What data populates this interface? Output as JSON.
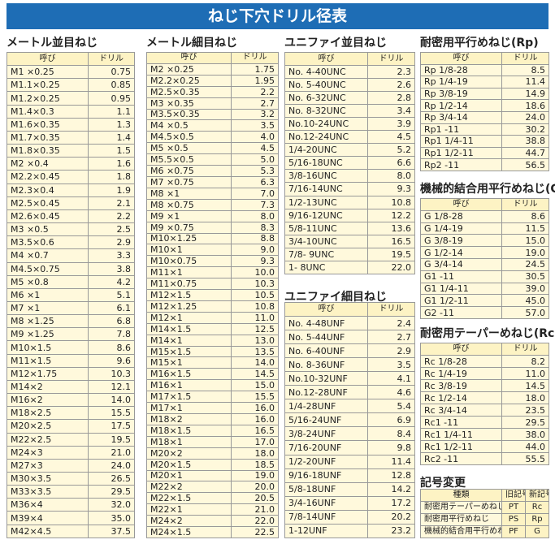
{
  "header": {
    "title": "ねじ下穴ドリル径表"
  },
  "sections": [
    {
      "title": "メートル並目ねじ",
      "header": [
        "呼び",
        "ドリル"
      ],
      "rows": [
        [
          "M1 ×0.25",
          "0.75"
        ],
        [
          "M1.1×0.25",
          "0.85"
        ],
        [
          "M1.2×0.25",
          "0.95"
        ],
        [
          "M1.4×0.3",
          "1.1"
        ],
        [
          "M1.6×0.35",
          "1.3"
        ],
        [
          "M1.7×0.35",
          "1.4"
        ],
        [
          "M1.8×0.35",
          "1.5"
        ],
        [
          "M2 ×0.4",
          "1.6"
        ],
        [
          "M2.2×0.45",
          "1.8"
        ],
        [
          "M2.3×0.4",
          "1.9"
        ],
        [
          "M2.5×0.45",
          "2.1"
        ],
        [
          "M2.6×0.45",
          "2.2"
        ],
        [
          "M3 ×0.5",
          "2.5"
        ],
        [
          "M3.5×0.6",
          "2.9"
        ],
        [
          "M4 ×0.7",
          "3.3"
        ],
        [
          "M4.5×0.75",
          "3.8"
        ],
        [
          "M5 ×0.8",
          "4.2"
        ],
        [
          "M6 ×1",
          "5.1"
        ],
        [
          "M7 ×1",
          "6.1"
        ],
        [
          "M8 ×1.25",
          "6.8"
        ],
        [
          "M9 ×1.25",
          "7.8"
        ],
        [
          "M10×1.5",
          "8.6"
        ],
        [
          "M11×1.5",
          "9.6"
        ],
        [
          "M12×1.75",
          "10.3"
        ],
        [
          "M14×2",
          "12.1"
        ],
        [
          "M16×2",
          "14.0"
        ],
        [
          "M18×2.5",
          "15.5"
        ],
        [
          "M20×2.5",
          "17.5"
        ],
        [
          "M22×2.5",
          "19.5"
        ],
        [
          "M24×3",
          "21.0"
        ],
        [
          "M27×3",
          "24.0"
        ],
        [
          "M30×3.5",
          "26.5"
        ],
        [
          "M33×3.5",
          "29.5"
        ],
        [
          "M36×4",
          "32.0"
        ],
        [
          "M39×4",
          "35.0"
        ],
        [
          "M42×4.5",
          "37.5"
        ]
      ]
    },
    {
      "title": "メートル細目ねじ",
      "header": [
        "呼び",
        "ドリル"
      ],
      "rows": [
        [
          "M2 ×0.25",
          "1.75"
        ],
        [
          "M2.2×0.25",
          "1.95"
        ],
        [
          "M2.5×0.35",
          "2.2"
        ],
        [
          "M3 ×0.35",
          "2.7"
        ],
        [
          "M3.5×0.35",
          "3.2"
        ],
        [
          "M4 ×0.5",
          "3.5"
        ],
        [
          "M4.5×0.5",
          "4.0"
        ],
        [
          "M5 ×0.5",
          "4.5"
        ],
        [
          "M5.5×0.5",
          "5.0"
        ],
        [
          "M6 ×0.75",
          "5.3"
        ],
        [
          "M7 ×0.75",
          "6.3"
        ],
        [
          "M8 ×1",
          "7.0"
        ],
        [
          "M8 ×0.75",
          "7.3"
        ],
        [
          "M9 ×1",
          "8.0"
        ],
        [
          "M9 ×0.75",
          "8.3"
        ],
        [
          "M10×1.25",
          "8.8"
        ],
        [
          "M10×1",
          "9.0"
        ],
        [
          "M10×0.75",
          "9.3"
        ],
        [
          "M11×1",
          "10.0"
        ],
        [
          "M11×0.75",
          "10.3"
        ],
        [
          "M12×1.5",
          "10.5"
        ],
        [
          "M12×1.25",
          "10.8"
        ],
        [
          "M12×1",
          "11.0"
        ],
        [
          "M14×1.5",
          "12.5"
        ],
        [
          "M14×1",
          "13.0"
        ],
        [
          "M15×1.5",
          "13.5"
        ],
        [
          "M15×1",
          "14.0"
        ],
        [
          "M16×1.5",
          "14.5"
        ],
        [
          "M16×1",
          "15.0"
        ],
        [
          "M17×1.5",
          "15.5"
        ],
        [
          "M17×1",
          "16.0"
        ],
        [
          "M18×2",
          "16.0"
        ],
        [
          "M18×1.5",
          "16.5"
        ],
        [
          "M18×1",
          "17.0"
        ],
        [
          "M20×2",
          "18.0"
        ],
        [
          "M20×1.5",
          "18.5"
        ],
        [
          "M20×1",
          "19.0"
        ],
        [
          "M22×2",
          "20.0"
        ],
        [
          "M22×1.5",
          "20.5"
        ],
        [
          "M22×1",
          "21.0"
        ],
        [
          "M24×2",
          "22.0"
        ],
        [
          "M24×1.5",
          "22.5"
        ]
      ]
    },
    {
      "title": "ユニファイ並目ねじ",
      "header": [
        "呼び",
        "ドリル"
      ],
      "rows": [
        [
          "No. 4-40UNC",
          "2.3"
        ],
        [
          "No. 5-40UNC",
          "2.6"
        ],
        [
          "No. 6-32UNC",
          "2.8"
        ],
        [
          "No. 8-32UNC",
          "3.4"
        ],
        [
          "No.10-24UNC",
          "3.9"
        ],
        [
          "No.12-24UNC",
          "4.5"
        ],
        [
          "1/4-20UNC",
          "5.2"
        ],
        [
          "5/16-18UNC",
          "6.6"
        ],
        [
          "3/8-16UNC",
          "8.0"
        ],
        [
          "7/16-14UNC",
          "9.3"
        ],
        [
          "1/2-13UNC",
          "10.8"
        ],
        [
          "9/16-12UNC",
          "12.2"
        ],
        [
          "5/8-11UNC",
          "13.6"
        ],
        [
          "3/4-10UNC",
          "16.5"
        ],
        [
          "7/8- 9UNC",
          "19.5"
        ],
        [
          "1- 8UNC",
          "22.0"
        ]
      ]
    },
    {
      "title": "ユニファイ細目ねじ",
      "header": [
        "呼び",
        "ドリル"
      ],
      "rows": [
        [
          "No. 4-48UNF",
          "2.4"
        ],
        [
          "No. 5-44UNF",
          "2.7"
        ],
        [
          "No. 6-40UNF",
          "2.9"
        ],
        [
          "No. 8-36UNF",
          "3.5"
        ],
        [
          "No.10-32UNF",
          "4.1"
        ],
        [
          "No.12-28UNF",
          "4.6"
        ],
        [
          "1/4-28UNF",
          "5.4"
        ],
        [
          "5/16-24UNF",
          "6.9"
        ],
        [
          "3/8-24UNF",
          "8.4"
        ],
        [
          "7/16-20UNF",
          "9.8"
        ],
        [
          "1/2-20UNF",
          "11.4"
        ],
        [
          "9/16-18UNF",
          "12.8"
        ],
        [
          "5/8-18UNF",
          "14.2"
        ],
        [
          "3/4-16UNF",
          "17.2"
        ],
        [
          "7/8-14UNF",
          "20.2"
        ],
        [
          "1-12UNF",
          "23.2"
        ]
      ]
    },
    {
      "title": "耐密用平行めねじ(Rp)",
      "header": [
        "呼び",
        "ドリル"
      ],
      "rows": [
        [
          "Rp 1/8-28",
          "8.5"
        ],
        [
          "Rp 1/4-19",
          "11.4"
        ],
        [
          "Rp 3/8-19",
          "14.9"
        ],
        [
          "Rp 1/2-14",
          "18.6"
        ],
        [
          "Rp 3/4-14",
          "24.0"
        ],
        [
          "Rp1 -11",
          "30.2"
        ],
        [
          "Rp1 1/4-11",
          "38.8"
        ],
        [
          "Rp1 1/2-11",
          "44.7"
        ],
        [
          "Rp2 -11",
          "56.5"
        ]
      ]
    },
    {
      "title": "機械的結合用平行めねじ(G)",
      "header": [
        "呼び",
        "ドリル"
      ],
      "rows": [
        [
          "G 1/8-28",
          "8.6"
        ],
        [
          "G 1/4-19",
          "11.5"
        ],
        [
          "G 3/8-19",
          "15.0"
        ],
        [
          "G 1/2-14",
          "19.0"
        ],
        [
          "G 3/4-14",
          "24.5"
        ],
        [
          "G1 -11",
          "30.5"
        ],
        [
          "G1 1/4-11",
          "39.0"
        ],
        [
          "G1 1/2-11",
          "45.0"
        ],
        [
          "G2 -11",
          "57.0"
        ]
      ]
    },
    {
      "title": "耐密用テーパーめねじ(Rc)",
      "header": [
        "呼び",
        "ドリル"
      ],
      "rows": [
        [
          "Rc 1/8-28",
          "8.2"
        ],
        [
          "Rc 1/4-19",
          "11.0"
        ],
        [
          "Rc 3/8-19",
          "14.5"
        ],
        [
          "Rc 1/2-14",
          "18.0"
        ],
        [
          "Rc 3/4-14",
          "23.5"
        ],
        [
          "Rc1 -11",
          "29.5"
        ],
        [
          "Rc1 1/4-11",
          "38.0"
        ],
        [
          "Rc1 1/2-11",
          "44.0"
        ],
        [
          "Rc2 -11",
          "55.5"
        ]
      ]
    },
    {
      "title": "記号変更",
      "header": [
        "種類",
        "旧記号",
        "新記号"
      ],
      "rows": [
        [
          "耐密用テーパーめねじ",
          "PT",
          "Rc"
        ],
        [
          "耐密用平行めねじ",
          "PS",
          "Rp"
        ],
        [
          "機械的結合用平行めねじ",
          "PF",
          "G"
        ]
      ]
    }
  ]
}
